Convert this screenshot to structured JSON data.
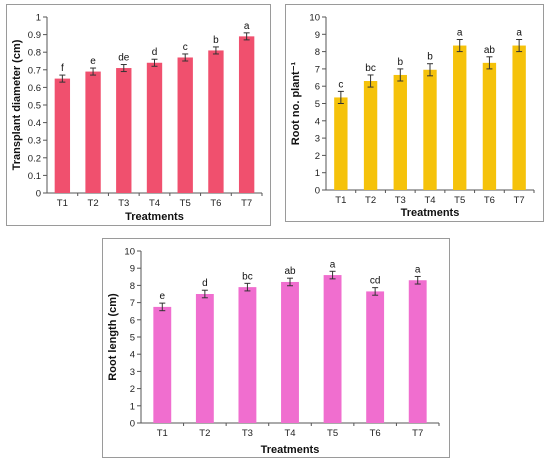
{
  "chart_data": [
    {
      "type": "bar",
      "ylabel": "Transplant diameter (cm)",
      "xlabel": "Treatments",
      "categories": [
        "T1",
        "T2",
        "T3",
        "T4",
        "T5",
        "T6",
        "T7"
      ],
      "values": [
        0.65,
        0.69,
        0.71,
        0.74,
        0.77,
        0.81,
        0.89
      ],
      "errors": [
        0.02,
        0.02,
        0.02,
        0.02,
        0.02,
        0.02,
        0.02
      ],
      "letters": [
        "f",
        "e",
        "de",
        "d",
        "c",
        "b",
        "a"
      ],
      "ylim": [
        0,
        1
      ],
      "yticks": [
        "0",
        "0.1",
        "0.2",
        "0.3",
        "0.4",
        "0.5",
        "0.6",
        "0.7",
        "0.8",
        "0.9",
        "1"
      ],
      "grid": false,
      "bar_color": "#f0506e"
    },
    {
      "type": "bar",
      "ylabel": "Root no. plant⁻¹",
      "xlabel": "Treatments",
      "categories": [
        "T1",
        "T2",
        "T3",
        "T4",
        "T5",
        "T6",
        "T7"
      ],
      "values": [
        5.35,
        6.3,
        6.65,
        6.95,
        8.35,
        7.35,
        8.35
      ],
      "errors": [
        0.35,
        0.35,
        0.35,
        0.35,
        0.35,
        0.35,
        0.35
      ],
      "letters": [
        "c",
        "bc",
        "b",
        "b",
        "a",
        "ab",
        "a"
      ],
      "ylim": [
        0,
        10
      ],
      "yticks": [
        "0",
        "1",
        "2",
        "3",
        "4",
        "5",
        "6",
        "7",
        "8",
        "9",
        "10"
      ],
      "grid": false,
      "bar_color": "#f5c20a"
    },
    {
      "type": "bar",
      "ylabel": "Root length (cm)",
      "xlabel": "Treatments",
      "categories": [
        "T1",
        "T2",
        "T3",
        "T4",
        "T5",
        "T6",
        "T7"
      ],
      "values": [
        6.75,
        7.5,
        7.9,
        8.2,
        8.6,
        7.65,
        8.3
      ],
      "errors": [
        0.22,
        0.22,
        0.22,
        0.22,
        0.22,
        0.22,
        0.22
      ],
      "letters": [
        "e",
        "d",
        "bc",
        "ab",
        "a",
        "cd",
        "a"
      ],
      "ylim": [
        0,
        10
      ],
      "yticks": [
        "0",
        "1",
        "2",
        "3",
        "4",
        "5",
        "6",
        "7",
        "8",
        "9",
        "10"
      ],
      "grid": false,
      "bar_color": "#f06ecf"
    }
  ]
}
